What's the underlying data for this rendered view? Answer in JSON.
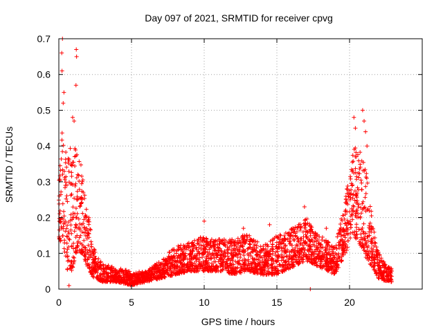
{
  "chart_data": {
    "type": "scatter",
    "title": "Day 097 of 2021, SRMTID for receiver cpvg",
    "xlabel": "GPS time / hours",
    "ylabel": "SRMTID / TECUs",
    "xlim": [
      0,
      25
    ],
    "ylim": [
      0,
      0.7
    ],
    "xticks": [
      0,
      5,
      10,
      15,
      20
    ],
    "xtick_labels": [
      "0",
      "5",
      "10",
      "15",
      "20"
    ],
    "yticks": [
      0,
      0.1,
      0.2,
      0.3,
      0.4,
      0.5,
      0.6,
      0.7
    ],
    "ytick_labels": [
      "0",
      "0.1",
      "0.2",
      "0.3",
      "0.4",
      "0.5",
      "0.6",
      "0.7"
    ],
    "grid": true,
    "marker": "+",
    "series": [
      {
        "name": "SRMTID",
        "color": "#ff0000",
        "envelope": [
          {
            "x": 0.0,
            "low": 0.14,
            "high": 0.3
          },
          {
            "x": 0.3,
            "low": 0.12,
            "high": 0.52
          },
          {
            "x": 0.6,
            "low": 0.05,
            "high": 0.42
          },
          {
            "x": 0.9,
            "low": 0.05,
            "high": 0.38
          },
          {
            "x": 1.2,
            "low": 0.1,
            "high": 0.42
          },
          {
            "x": 1.6,
            "low": 0.1,
            "high": 0.36
          },
          {
            "x": 2.0,
            "low": 0.06,
            "high": 0.22
          },
          {
            "x": 2.4,
            "low": 0.03,
            "high": 0.12
          },
          {
            "x": 3.0,
            "low": 0.02,
            "high": 0.07
          },
          {
            "x": 4.0,
            "low": 0.02,
            "high": 0.06
          },
          {
            "x": 5.0,
            "low": 0.01,
            "high": 0.05
          },
          {
            "x": 6.0,
            "low": 0.02,
            "high": 0.05
          },
          {
            "x": 7.0,
            "low": 0.03,
            "high": 0.08
          },
          {
            "x": 8.0,
            "low": 0.04,
            "high": 0.12
          },
          {
            "x": 9.0,
            "low": 0.05,
            "high": 0.13
          },
          {
            "x": 10.0,
            "low": 0.05,
            "high": 0.15
          },
          {
            "x": 11.0,
            "low": 0.05,
            "high": 0.14
          },
          {
            "x": 12.0,
            "low": 0.04,
            "high": 0.14
          },
          {
            "x": 13.0,
            "low": 0.05,
            "high": 0.16
          },
          {
            "x": 14.0,
            "low": 0.04,
            "high": 0.12
          },
          {
            "x": 15.0,
            "low": 0.04,
            "high": 0.15
          },
          {
            "x": 16.0,
            "low": 0.06,
            "high": 0.17
          },
          {
            "x": 17.0,
            "low": 0.08,
            "high": 0.2
          },
          {
            "x": 18.0,
            "low": 0.06,
            "high": 0.15
          },
          {
            "x": 19.0,
            "low": 0.04,
            "high": 0.12
          },
          {
            "x": 19.7,
            "low": 0.1,
            "high": 0.25
          },
          {
            "x": 20.3,
            "low": 0.15,
            "high": 0.42
          },
          {
            "x": 20.8,
            "low": 0.12,
            "high": 0.38
          },
          {
            "x": 21.2,
            "low": 0.08,
            "high": 0.32
          },
          {
            "x": 21.6,
            "low": 0.06,
            "high": 0.18
          },
          {
            "x": 22.0,
            "low": 0.03,
            "high": 0.1
          },
          {
            "x": 22.5,
            "low": 0.02,
            "high": 0.07
          },
          {
            "x": 22.9,
            "low": 0.02,
            "high": 0.06
          }
        ],
        "points_per_hour": 130,
        "outliers": [
          {
            "x": 0.25,
            "y": 0.7
          },
          {
            "x": 0.2,
            "y": 0.66
          },
          {
            "x": 0.22,
            "y": 0.61
          },
          {
            "x": 1.2,
            "y": 0.67
          },
          {
            "x": 1.22,
            "y": 0.65
          },
          {
            "x": 1.18,
            "y": 0.57
          },
          {
            "x": 0.35,
            "y": 0.55
          },
          {
            "x": 0.3,
            "y": 0.52
          },
          {
            "x": 0.95,
            "y": 0.48
          },
          {
            "x": 1.05,
            "y": 0.47
          },
          {
            "x": 0.7,
            "y": 0.01
          },
          {
            "x": 20.3,
            "y": 0.48
          },
          {
            "x": 20.4,
            "y": 0.45
          },
          {
            "x": 20.9,
            "y": 0.5
          },
          {
            "x": 21.0,
            "y": 0.47
          },
          {
            "x": 21.1,
            "y": 0.44
          },
          {
            "x": 21.2,
            "y": 0.4
          },
          {
            "x": 16.9,
            "y": 0.23
          },
          {
            "x": 10.0,
            "y": 0.19
          },
          {
            "x": 12.7,
            "y": 0.17
          },
          {
            "x": 14.5,
            "y": 0.18
          },
          {
            "x": 18.4,
            "y": 0.17
          },
          {
            "x": 17.3,
            "y": 0.0
          }
        ]
      }
    ]
  }
}
